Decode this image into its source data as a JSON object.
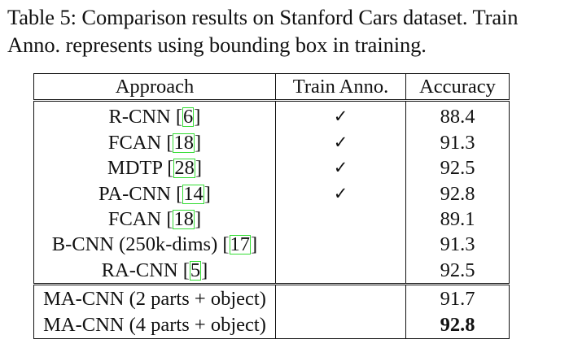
{
  "caption": {
    "line1": "Table 5: Comparison results on Stanford Cars dataset. Train",
    "line2": "Anno. represents using bounding box in training."
  },
  "table": {
    "headers": [
      "Approach",
      "Train Anno.",
      "Accuracy"
    ],
    "group1": [
      {
        "name": "R-CNN ",
        "ref": "6",
        "anno": "✓",
        "accuracy": "88.4"
      },
      {
        "name": "FCAN ",
        "ref": "18",
        "anno": "✓",
        "accuracy": "91.3"
      },
      {
        "name": "MDTP ",
        "ref": "28",
        "anno": "✓",
        "accuracy": "92.5"
      },
      {
        "name": "PA-CNN ",
        "ref": "14",
        "anno": "✓",
        "accuracy": "92.8"
      },
      {
        "name": "FCAN ",
        "ref": "18",
        "anno": "",
        "accuracy": "89.1"
      },
      {
        "name": "B-CNN (250k-dims) ",
        "ref": "17",
        "anno": "",
        "accuracy": "91.3"
      },
      {
        "name": "RA-CNN ",
        "ref": "5",
        "anno": "",
        "accuracy": "92.5"
      }
    ],
    "group2": [
      {
        "name": "MA-CNN (2 parts + object)",
        "anno": "",
        "accuracy": "91.7"
      },
      {
        "name": "MA-CNN (4 parts + object)",
        "anno": "",
        "accuracy": "92.8"
      }
    ],
    "ref_box_color": "#33dd33"
  }
}
